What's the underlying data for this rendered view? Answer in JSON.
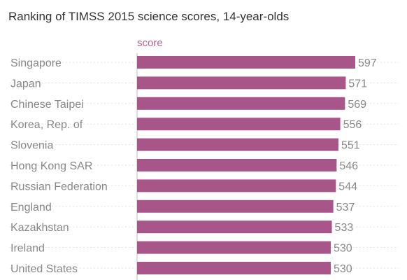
{
  "chart_data": {
    "type": "bar",
    "orientation": "horizontal",
    "title": "Ranking of TIMSS 2015 science scores, 14-year-olds",
    "series_label": "score",
    "categories": [
      "Singapore",
      "Japan",
      "Chinese Taipei",
      "Korea, Rep. of",
      "Slovenia",
      "Hong Kong SAR",
      "Russian Federation",
      "England",
      "Kazakhstan",
      "Ireland",
      "United States"
    ],
    "values": [
      597,
      571,
      569,
      556,
      551,
      546,
      544,
      537,
      533,
      530,
      530
    ],
    "xlim": [
      0,
      597
    ],
    "grid": false,
    "bar_color": "#a8558a",
    "series_label_color": "#b5608f"
  }
}
